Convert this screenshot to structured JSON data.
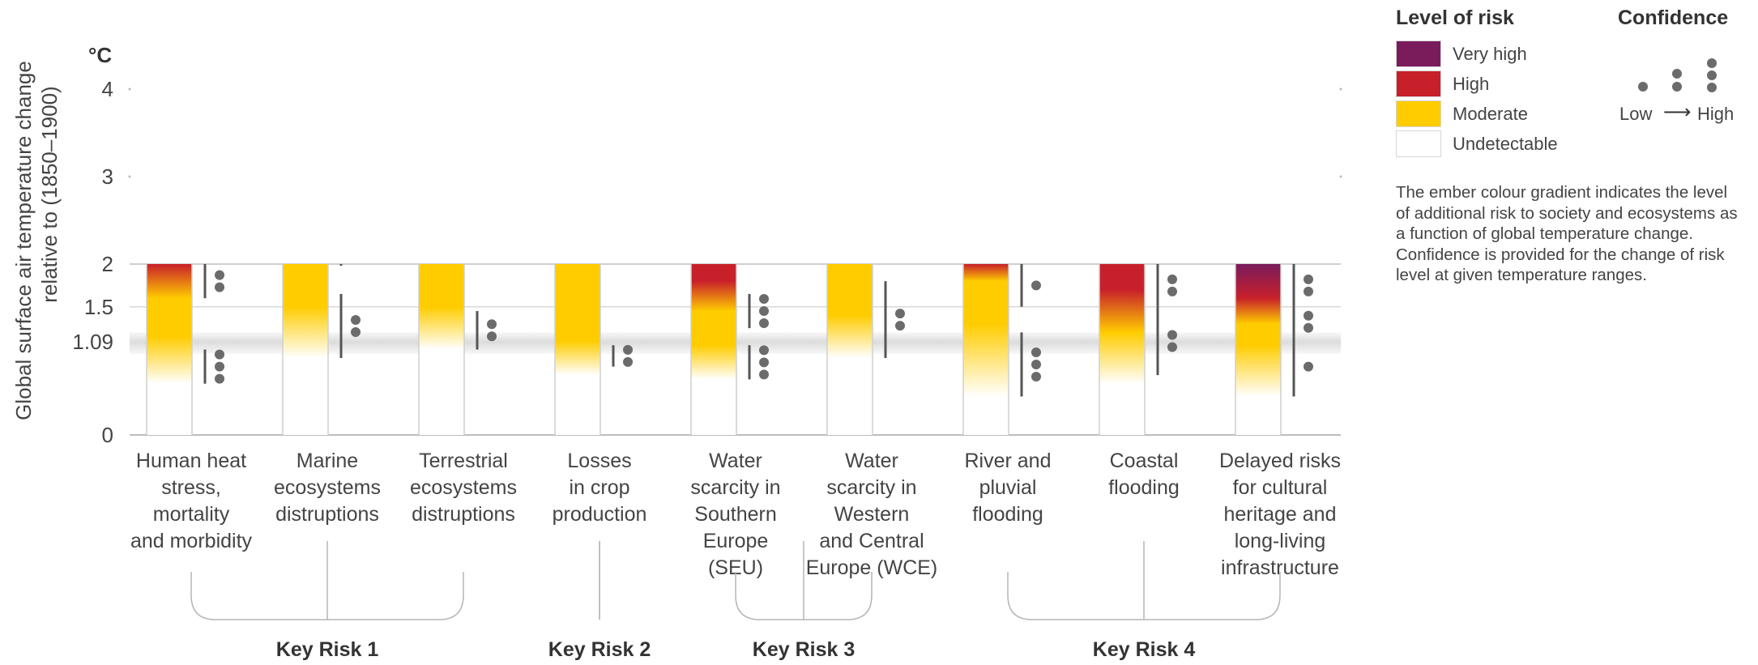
{
  "chart_data": {
    "type": "ember",
    "ylabel_line1": "Global surface air temperature change",
    "ylabel_line2": "relative to (1850–1900)",
    "yunit": "°C",
    "yticks": [
      {
        "value": 0,
        "label": "0"
      },
      {
        "value": 1.09,
        "label": "1.09"
      },
      {
        "value": 1.5,
        "label": "1.5"
      },
      {
        "value": 2,
        "label": "2"
      },
      {
        "value": 3,
        "label": "3"
      },
      {
        "value": 4,
        "label": "4"
      }
    ],
    "ylim": [
      0,
      4
    ],
    "shaded_band": [
      0.95,
      1.2
    ],
    "risk_colors": {
      "very_high": "#7a1b5c",
      "high": "#c8202a",
      "moderate": "#ffcc00",
      "undetectable": "#ffffff"
    },
    "categories": [
      {
        "label": [
          "Human heat",
          "stress,",
          "mortality",
          "and morbidity"
        ],
        "stops": [
          [
            0.6,
            "u"
          ],
          [
            1.15,
            "m"
          ],
          [
            1.6,
            "m"
          ],
          [
            2.0,
            "h"
          ]
        ],
        "confidence": [
          {
            "from": 0.6,
            "to": 1.0,
            "dots": 3
          },
          {
            "from": 1.6,
            "to": 2.0,
            "dots": 2
          }
        ]
      },
      {
        "label": [
          "Marine",
          "ecosystems",
          "distruptions"
        ],
        "stops": [
          [
            0.9,
            "u"
          ],
          [
            1.5,
            "m"
          ],
          [
            2.0,
            "m"
          ]
        ],
        "confidence": [
          {
            "from": 0.9,
            "to": 1.65,
            "dots": 2
          },
          {
            "from": 1.98,
            "to": 2.0,
            "dots": 0
          }
        ]
      },
      {
        "label": [
          "Terrestrial",
          "ecosystems",
          "distruptions"
        ],
        "stops": [
          [
            1.0,
            "u"
          ],
          [
            1.5,
            "m"
          ],
          [
            2.0,
            "m"
          ]
        ],
        "confidence": [
          {
            "from": 1.0,
            "to": 1.45,
            "dots": 2
          }
        ]
      },
      {
        "label": [
          "Losses",
          "in crop",
          "production"
        ],
        "stops": [
          [
            0.7,
            "u"
          ],
          [
            1.1,
            "m"
          ],
          [
            2.0,
            "m"
          ]
        ],
        "confidence": [
          {
            "from": 0.8,
            "to": 1.05,
            "dots": 2
          }
        ]
      },
      {
        "label": [
          "Water",
          "scarcity in",
          "Southern",
          "Europe",
          "(SEU)"
        ],
        "stops": [
          [
            0.65,
            "u"
          ],
          [
            1.05,
            "m"
          ],
          [
            1.45,
            "m"
          ],
          [
            1.8,
            "h"
          ],
          [
            2.0,
            "h"
          ]
        ],
        "confidence": [
          {
            "from": 0.65,
            "to": 1.05,
            "dots": 3
          },
          {
            "from": 1.25,
            "to": 1.65,
            "dots": 3
          }
        ]
      },
      {
        "label": [
          "Water",
          "scarcity in",
          "Western",
          "and Central",
          "Europe (WCE)"
        ],
        "stops": [
          [
            0.9,
            "u"
          ],
          [
            1.4,
            "m"
          ],
          [
            2.0,
            "m"
          ]
        ],
        "confidence": [
          {
            "from": 0.9,
            "to": 1.8,
            "dots": 2
          }
        ]
      },
      {
        "label": [
          "River and",
          "pluvial",
          "flooding"
        ],
        "stops": [
          [
            0.45,
            "u"
          ],
          [
            1.3,
            "m"
          ],
          [
            1.8,
            "m"
          ],
          [
            2.0,
            "h"
          ]
        ],
        "confidence": [
          {
            "from": 0.45,
            "to": 1.2,
            "dots": 3
          },
          {
            "from": 1.5,
            "to": 2.0,
            "dots": 1
          }
        ]
      },
      {
        "label": [
          "Coastal",
          "flooding"
        ],
        "stops": [
          [
            0.6,
            "u"
          ],
          [
            1.2,
            "m"
          ],
          [
            1.7,
            "h"
          ],
          [
            2.0,
            "h"
          ]
        ],
        "confidence": [
          {
            "from": 0.7,
            "to": 1.5,
            "dots": 2
          },
          {
            "from": 1.5,
            "to": 2.0,
            "dots": 2
          }
        ]
      },
      {
        "label": [
          "Delayed risks",
          "for cultural",
          "heritage and",
          "long-living",
          "infrastructure"
        ],
        "stops": [
          [
            0.45,
            "u"
          ],
          [
            1.05,
            "m"
          ],
          [
            1.3,
            "m"
          ],
          [
            1.6,
            "h"
          ],
          [
            2.0,
            "v"
          ]
        ],
        "confidence": [
          {
            "from": 0.45,
            "to": 1.15,
            "dots": 1
          },
          {
            "from": 1.15,
            "to": 1.5,
            "dots": 2
          },
          {
            "from": 1.5,
            "to": 2.0,
            "dots": 2
          }
        ]
      }
    ],
    "groups": [
      {
        "label": "Key Risk 1",
        "from": 0,
        "to": 2
      },
      {
        "label": "Key Risk 2",
        "from": 3,
        "to": 3
      },
      {
        "label": "Key Risk 3",
        "from": 4,
        "to": 5
      },
      {
        "label": "Key Risk 4",
        "from": 6,
        "to": 8
      }
    ]
  },
  "legend": {
    "level_title": "Level of risk",
    "levels": [
      {
        "label": "Very high",
        "color": "#7a1b5c"
      },
      {
        "label": "High",
        "color": "#c8202a"
      },
      {
        "label": "Moderate",
        "color": "#ffcc00"
      },
      {
        "label": "Undetectable",
        "color": "#ffffff"
      }
    ],
    "confidence_title": "Confidence",
    "conf_low": "Low",
    "conf_high": "High",
    "note": "The ember colour gradient indicates the level of additional risk to society and ecosystems as a function of global temperature change. Confidence is provided for the change of risk level at given temperature ranges."
  }
}
